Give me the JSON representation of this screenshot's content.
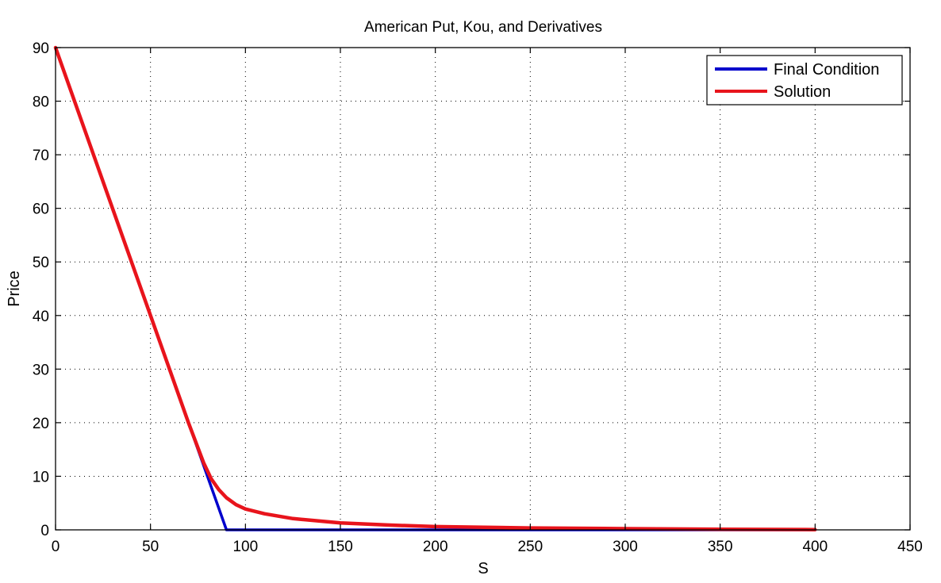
{
  "chart_data": {
    "type": "line",
    "title": "American Put, Kou, and Derivatives",
    "xlabel": "S",
    "ylabel": "Price",
    "xlim": [
      0,
      450
    ],
    "ylim": [
      0,
      90
    ],
    "xticks": [
      0,
      50,
      100,
      150,
      200,
      250,
      300,
      350,
      400,
      450
    ],
    "yticks": [
      0,
      10,
      20,
      30,
      40,
      50,
      60,
      70,
      80,
      90
    ],
    "grid": true,
    "legend_position": "top-right",
    "series": [
      {
        "name": "Final Condition",
        "color": "#0000cc",
        "x": [
          0,
          90,
          400
        ],
        "y": [
          90,
          0,
          0
        ]
      },
      {
        "name": "Solution",
        "color": "#e8141c",
        "x": [
          0,
          50,
          70,
          78,
          82,
          86,
          90,
          95,
          100,
          110,
          125,
          150,
          175,
          200,
          250,
          300,
          350,
          400
        ],
        "y": [
          90,
          40,
          20,
          12.5,
          9.5,
          7.5,
          6.0,
          4.7,
          3.9,
          3.0,
          2.1,
          1.3,
          0.9,
          0.6,
          0.35,
          0.22,
          0.12,
          0.05
        ]
      }
    ]
  }
}
